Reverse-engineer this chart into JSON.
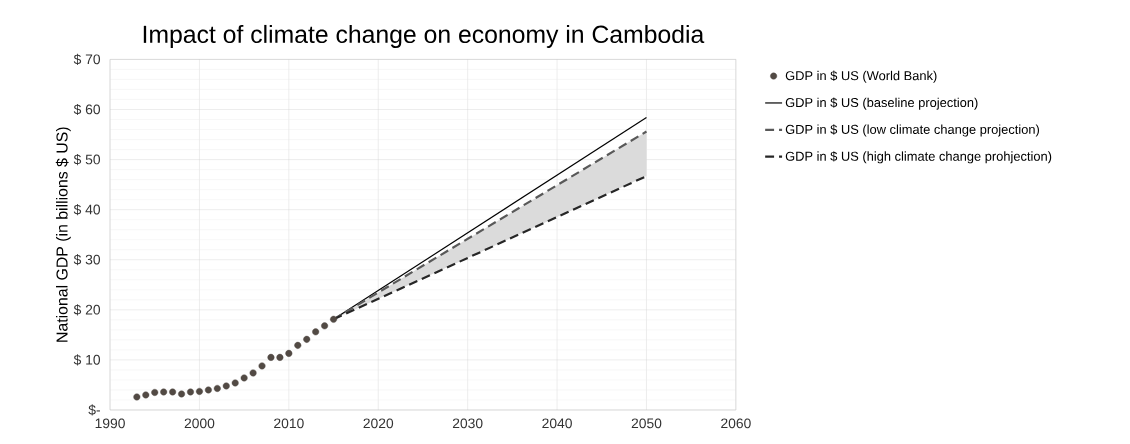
{
  "chart_data": {
    "type": "line",
    "title": "Impact of climate change on economy in Cambodia",
    "ylabel": "National GDP (in billions $ US)",
    "xlim": [
      1990,
      2060
    ],
    "xticks": [
      1990,
      2000,
      2010,
      2020,
      2030,
      2040,
      2050,
      2060
    ],
    "ylim": [
      0,
      70
    ],
    "yticks": [
      {
        "value": 0,
        "label": "$-"
      },
      {
        "value": 10,
        "label": "$ 10"
      },
      {
        "value": 20,
        "label": "$ 20"
      },
      {
        "value": 30,
        "label": "$ 30"
      },
      {
        "value": 40,
        "label": "$ 40"
      },
      {
        "value": 50,
        "label": "$ 50"
      },
      {
        "value": 60,
        "label": "$ 60"
      },
      {
        "value": 70,
        "label": "$ 70"
      }
    ],
    "grid": true,
    "legend": "right",
    "series": [
      {
        "name": "GDP in $ US (World Bank)",
        "type": "scatter",
        "marker": "circle",
        "color": "#524a44",
        "x": [
          1993,
          1994,
          1995,
          1996,
          1997,
          1998,
          1999,
          2000,
          2001,
          2002,
          2003,
          2004,
          2005,
          2006,
          2007,
          2008,
          2009,
          2010,
          2011,
          2012,
          2013,
          2014,
          2015
        ],
        "values": [
          2.6,
          3.0,
          3.5,
          3.6,
          3.6,
          3.2,
          3.6,
          3.7,
          4.0,
          4.3,
          4.8,
          5.4,
          6.4,
          7.4,
          8.8,
          10.5,
          10.5,
          11.3,
          12.9,
          14.1,
          15.6,
          16.8,
          18.1
        ]
      },
      {
        "name": "GDP in $ US (baseline projection)",
        "type": "line",
        "line_style": "solid",
        "color": "#000000",
        "x": [
          2015,
          2050
        ],
        "values": [
          18.1,
          58.4
        ]
      },
      {
        "name": "GDP in $ US (low climate change projection)",
        "type": "line",
        "line_style": "dashed",
        "color": "#595959",
        "x": [
          2015,
          2050
        ],
        "values": [
          18.1,
          55.6
        ],
        "lower": [
          18.1,
          46.7
        ],
        "upper": [
          18.1,
          55.6
        ]
      },
      {
        "name": "GDP in $ US (high climate change prohjection)",
        "type": "line",
        "line_style": "dashed",
        "color": "#262626",
        "x": [
          2015,
          2050
        ],
        "values": [
          18.1,
          46.7
        ]
      }
    ]
  }
}
